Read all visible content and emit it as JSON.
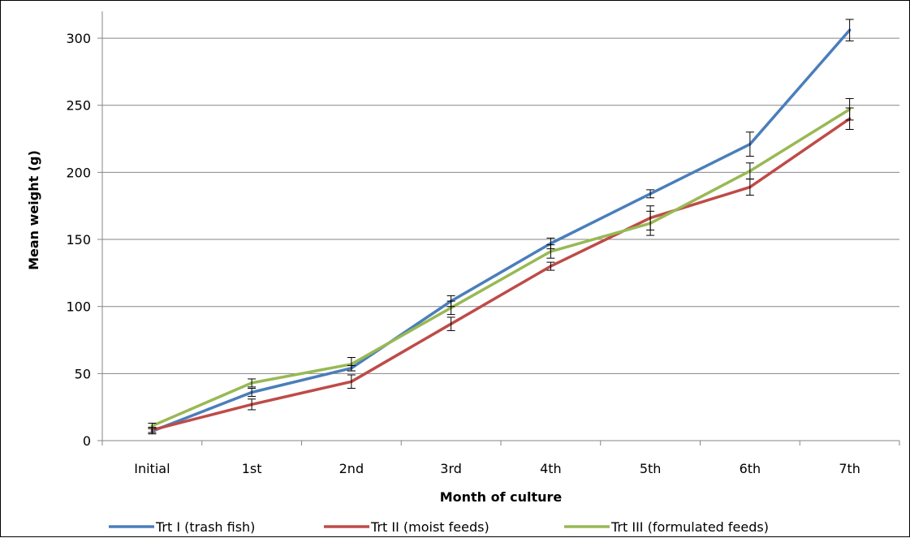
{
  "chart_data": {
    "type": "line",
    "title": "",
    "xlabel": "Month of culture",
    "ylabel": "Mean weight (g)",
    "ylim": [
      0,
      320
    ],
    "yticks": [
      0,
      50,
      100,
      150,
      200,
      250,
      300
    ],
    "grid": "horizontal",
    "legend_position": "bottom",
    "categories": [
      "Initial",
      "1st",
      "2nd",
      "3rd",
      "4th",
      "5th",
      "6th",
      "7th"
    ],
    "series": [
      {
        "name": "Trt I (trash fish)",
        "color": "#4a7ebb",
        "values": [
          7,
          36,
          54,
          104,
          147,
          184,
          221,
          306
        ],
        "errors": [
          2,
          3,
          2,
          4,
          4,
          3,
          9,
          8
        ]
      },
      {
        "name": "Trt II (moist feeds)",
        "color": "#be4b48",
        "values": [
          8,
          27,
          44,
          87,
          130,
          166,
          189,
          240
        ],
        "errors": [
          2,
          4,
          5,
          5,
          3,
          9,
          6,
          8
        ]
      },
      {
        "name": "Trt III (formulated feeds)",
        "color": "#98b954",
        "values": [
          11,
          43,
          57,
          99,
          141,
          162,
          201,
          247
        ],
        "errors": [
          2,
          3,
          5,
          5,
          5,
          9,
          6,
          8
        ]
      }
    ]
  }
}
